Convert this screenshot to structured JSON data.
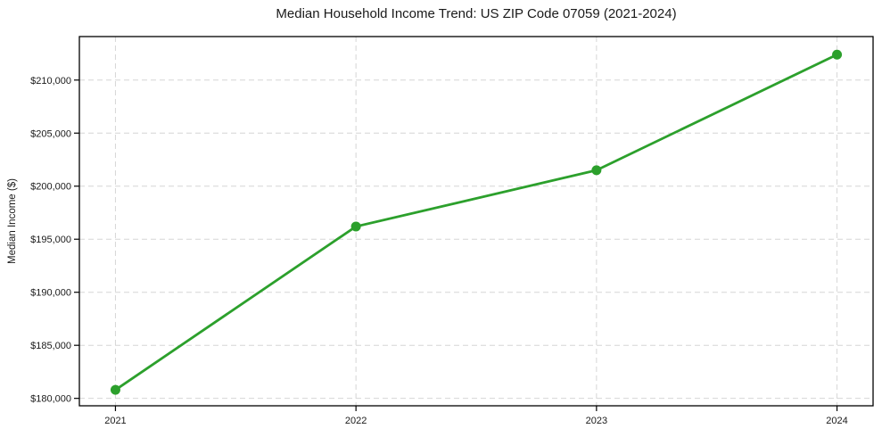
{
  "chart_data": {
    "type": "line",
    "title": "Median Household Income Trend: US ZIP Code 07059 (2021-2024)",
    "xlabel": "",
    "ylabel": "Median Income ($)",
    "x": [
      2021,
      2022,
      2023,
      2024
    ],
    "x_tick_labels": [
      "2021",
      "2022",
      "2023",
      "2024"
    ],
    "values": [
      180800,
      196200,
      201500,
      212400
    ],
    "y_ticks": [
      180000,
      185000,
      190000,
      195000,
      200000,
      205000,
      210000
    ],
    "y_tick_labels": [
      "$180,000",
      "$185,000",
      "$190,000",
      "$195,000",
      "$200,000",
      "$205,000",
      "$210,000"
    ],
    "xlim": [
      2020.85,
      2024.15
    ],
    "ylim": [
      179300,
      214100
    ],
    "grid": true,
    "grid_style": "dashed",
    "grid_color": "#d6d6d6",
    "line_color": "#2ca02c",
    "marker": "circle",
    "legend_position": "none",
    "background": "#ffffff",
    "spine_color": "#000000"
  }
}
